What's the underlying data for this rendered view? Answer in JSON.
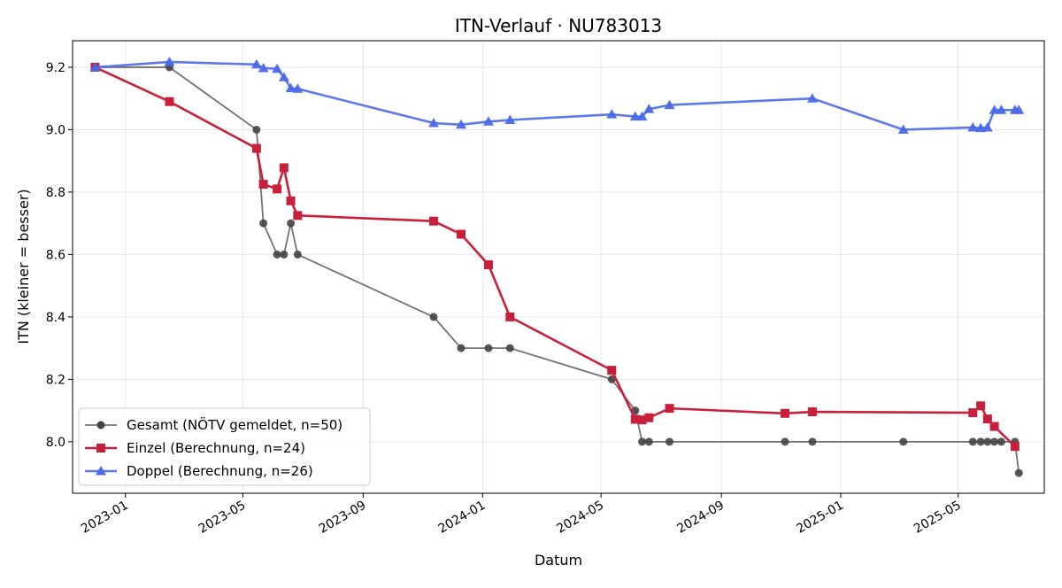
{
  "chart_data": {
    "type": "line",
    "title": "ITN-Verlauf · NU783013",
    "xlabel": "Datum",
    "ylabel": "ITN  (kleiner = besser)",
    "x_type": "date",
    "xlim": [
      "2022-11-08",
      "2025-07-28"
    ],
    "ylim": [
      7.835,
      9.285
    ],
    "x_ticks": [
      {
        "date": "2023-01-01",
        "label": "2023-01"
      },
      {
        "date": "2023-05-01",
        "label": "2023-05"
      },
      {
        "date": "2023-09-01",
        "label": "2023-09"
      },
      {
        "date": "2024-01-01",
        "label": "2024-01"
      },
      {
        "date": "2024-05-01",
        "label": "2024-05"
      },
      {
        "date": "2024-09-01",
        "label": "2024-09"
      },
      {
        "date": "2025-01-01",
        "label": "2025-01"
      },
      {
        "date": "2025-05-01",
        "label": "2025-05"
      }
    ],
    "y_ticks": [
      {
        "value": 8.0,
        "label": "8.0"
      },
      {
        "value": 8.2,
        "label": "8.2"
      },
      {
        "value": 8.4,
        "label": "8.4"
      },
      {
        "value": 8.6,
        "label": "8.6"
      },
      {
        "value": 8.8,
        "label": "8.8"
      },
      {
        "value": 9.0,
        "label": "9.0"
      },
      {
        "value": 9.2,
        "label": "9.2"
      }
    ],
    "grid": true,
    "legend_position": "lower-left",
    "series": [
      {
        "name": "Gesamt (NÖTV gemeldet, n=50)",
        "color": "#444444",
        "marker": "circle",
        "points": [
          {
            "x": "2022-12-01",
            "y": 9.2
          },
          {
            "x": "2023-02-15",
            "y": 9.2
          },
          {
            "x": "2023-05-15",
            "y": 9.0
          },
          {
            "x": "2023-05-22",
            "y": 8.7
          },
          {
            "x": "2023-06-05",
            "y": 8.6
          },
          {
            "x": "2023-06-12",
            "y": 8.6
          },
          {
            "x": "2023-06-19",
            "y": 8.7
          },
          {
            "x": "2023-06-26",
            "y": 8.6
          },
          {
            "x": "2023-11-12",
            "y": 8.4
          },
          {
            "x": "2023-12-10",
            "y": 8.3
          },
          {
            "x": "2024-01-07",
            "y": 8.3
          },
          {
            "x": "2024-01-29",
            "y": 8.3
          },
          {
            "x": "2024-05-12",
            "y": 8.2
          },
          {
            "x": "2024-06-05",
            "y": 8.1
          },
          {
            "x": "2024-06-12",
            "y": 8.0
          },
          {
            "x": "2024-06-19",
            "y": 8.0
          },
          {
            "x": "2024-07-10",
            "y": 8.0
          },
          {
            "x": "2024-11-05",
            "y": 8.0
          },
          {
            "x": "2024-12-03",
            "y": 8.0
          },
          {
            "x": "2025-03-06",
            "y": 8.0
          },
          {
            "x": "2025-05-16",
            "y": 8.0
          },
          {
            "x": "2025-05-24",
            "y": 8.0
          },
          {
            "x": "2025-05-31",
            "y": 8.0
          },
          {
            "x": "2025-06-07",
            "y": 8.0
          },
          {
            "x": "2025-06-14",
            "y": 8.0
          },
          {
            "x": "2025-06-28",
            "y": 8.0
          },
          {
            "x": "2025-07-02",
            "y": 7.9
          }
        ]
      },
      {
        "name": "Einzel (Berechnung, n=24)",
        "color": "#c8203a",
        "marker": "square",
        "points": [
          {
            "x": "2022-12-01",
            "y": 9.2
          },
          {
            "x": "2023-02-15",
            "y": 9.09
          },
          {
            "x": "2023-05-15",
            "y": 8.94
          },
          {
            "x": "2023-05-22",
            "y": 8.825
          },
          {
            "x": "2023-06-05",
            "y": 8.81
          },
          {
            "x": "2023-06-12",
            "y": 8.878
          },
          {
            "x": "2023-06-19",
            "y": 8.772
          },
          {
            "x": "2023-06-26",
            "y": 8.725
          },
          {
            "x": "2023-11-12",
            "y": 8.707
          },
          {
            "x": "2023-12-10",
            "y": 8.665
          },
          {
            "x": "2024-01-07",
            "y": 8.567
          },
          {
            "x": "2024-01-29",
            "y": 8.4
          },
          {
            "x": "2024-05-12",
            "y": 8.229
          },
          {
            "x": "2024-06-05",
            "y": 8.072
          },
          {
            "x": "2024-06-12",
            "y": 8.07
          },
          {
            "x": "2024-06-19",
            "y": 8.077
          },
          {
            "x": "2024-07-10",
            "y": 8.107
          },
          {
            "x": "2024-11-05",
            "y": 8.091
          },
          {
            "x": "2024-12-03",
            "y": 8.096
          },
          {
            "x": "2025-05-16",
            "y": 8.093
          },
          {
            "x": "2025-05-24",
            "y": 8.115
          },
          {
            "x": "2025-05-31",
            "y": 8.073
          },
          {
            "x": "2025-06-07",
            "y": 8.049
          },
          {
            "x": "2025-06-28",
            "y": 7.985
          }
        ]
      },
      {
        "name": "Doppel (Berechnung, n=26)",
        "color": "#4a69e8",
        "marker": "triangle",
        "points": [
          {
            "x": "2022-12-01",
            "y": 9.2
          },
          {
            "x": "2023-02-15",
            "y": 9.217
          },
          {
            "x": "2023-05-15",
            "y": 9.209
          },
          {
            "x": "2023-05-22",
            "y": 9.197
          },
          {
            "x": "2023-06-05",
            "y": 9.195
          },
          {
            "x": "2023-06-12",
            "y": 9.168
          },
          {
            "x": "2023-06-19",
            "y": 9.133
          },
          {
            "x": "2023-06-26",
            "y": 9.131
          },
          {
            "x": "2023-11-12",
            "y": 9.021
          },
          {
            "x": "2023-12-10",
            "y": 9.016
          },
          {
            "x": "2024-01-07",
            "y": 9.026
          },
          {
            "x": "2024-01-29",
            "y": 9.031
          },
          {
            "x": "2024-05-12",
            "y": 9.049
          },
          {
            "x": "2024-06-05",
            "y": 9.042
          },
          {
            "x": "2024-06-12",
            "y": 9.042
          },
          {
            "x": "2024-06-19",
            "y": 9.066
          },
          {
            "x": "2024-07-10",
            "y": 9.079
          },
          {
            "x": "2024-12-03",
            "y": 9.1
          },
          {
            "x": "2025-03-06",
            "y": 9.0
          },
          {
            "x": "2025-05-16",
            "y": 9.007
          },
          {
            "x": "2025-05-24",
            "y": 9.005
          },
          {
            "x": "2025-05-31",
            "y": 9.007
          },
          {
            "x": "2025-06-07",
            "y": 9.063
          },
          {
            "x": "2025-06-14",
            "y": 9.063
          },
          {
            "x": "2025-06-28",
            "y": 9.063
          },
          {
            "x": "2025-07-02",
            "y": 9.063
          }
        ]
      }
    ]
  }
}
